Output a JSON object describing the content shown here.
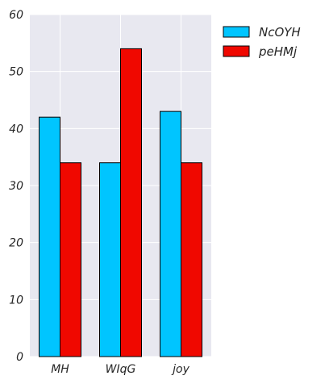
{
  "chart_data": {
    "type": "bar",
    "title": "",
    "xlabel": "",
    "ylabel": "",
    "categories": [
      "MH",
      "WIqG",
      "joy"
    ],
    "series": [
      {
        "name": "NcOYH",
        "values": [
          42,
          34,
          43
        ],
        "color": "#00c5ff"
      },
      {
        "name": "peHMj",
        "values": [
          34,
          54,
          34
        ],
        "color": "#f00800"
      }
    ],
    "ylim": [
      0,
      60
    ],
    "yticks": [
      0,
      10,
      20,
      30,
      40,
      50,
      60
    ],
    "grid": true,
    "legend_position": "outside top-right",
    "style": {
      "plot_background": "#e8e8f0",
      "grid_color": "#ffffff",
      "bar_edge_color": "#000000"
    }
  }
}
